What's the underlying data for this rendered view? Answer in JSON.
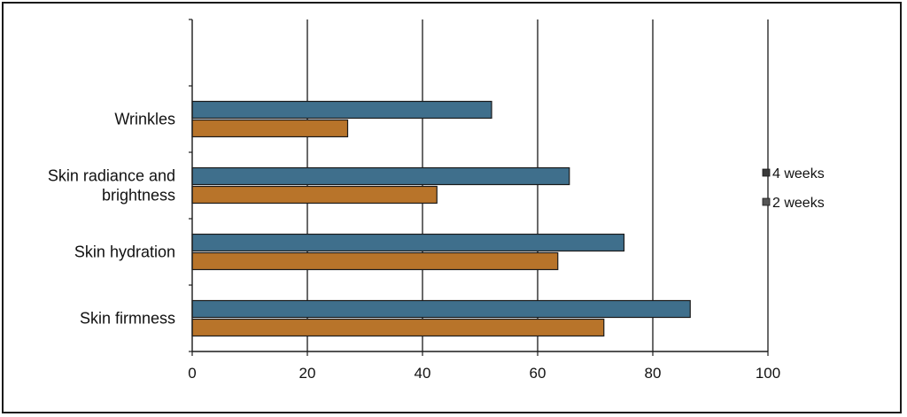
{
  "chart_data": {
    "type": "bar",
    "orientation": "horizontal",
    "categories": [
      "Skin firmness",
      "Skin hydration",
      "Skin radiance and brightness",
      "Wrinkles"
    ],
    "category_lines": [
      [
        "Skin firmness"
      ],
      [
        "Skin hydration"
      ],
      [
        "Skin radiance and",
        "brightness"
      ],
      [
        "Wrinkles"
      ]
    ],
    "series": [
      {
        "name": "4 weeks",
        "values": [
          86.5,
          75,
          65.5,
          52
        ],
        "color": "#3f6f8c"
      },
      {
        "name": "2 weeks",
        "values": [
          71.5,
          63.5,
          42.5,
          27
        ],
        "color": "#b8742a"
      }
    ],
    "xlim": [
      0,
      100
    ],
    "xticks": [
      0,
      20,
      40,
      60,
      80,
      100
    ],
    "xlabel": "",
    "ylabel": "",
    "title": "",
    "grid": "vertical major lines",
    "legend_position": "right"
  }
}
